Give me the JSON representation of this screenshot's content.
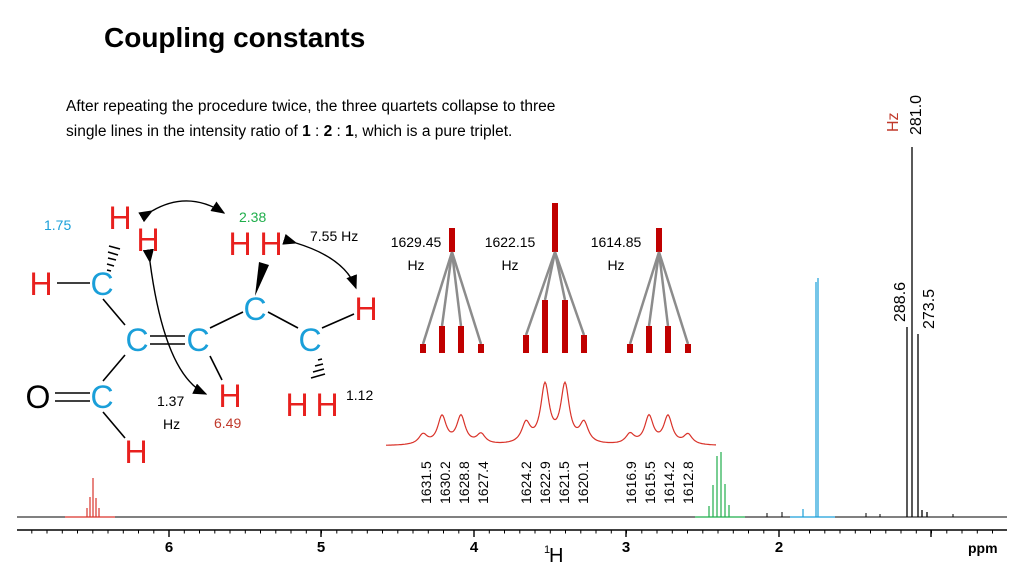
{
  "title": "Coupling constants",
  "description": {
    "line1": "After repeating the procedure twice, the three quartets collapse to three",
    "line2_start": "single lines in the intensity ratio of ",
    "ratio": [
      "1",
      "2",
      "1"
    ],
    "ratio_sep": " : ",
    "line2_end": ", which is a pure triplet."
  },
  "molecule": {
    "atoms": {
      "H_top_left_1": "H",
      "H_top_left_2": "H",
      "H_left": "H",
      "C1": "C",
      "C2": "C",
      "C3": "C",
      "C4": "C",
      "C5": "C",
      "C6": "C",
      "O": "O",
      "H_bottom": "H",
      "H_mid": "H",
      "H_top_mid_1": "H",
      "H_top_mid_2": "H",
      "H_right": "H",
      "H_bottom_right_1": "H",
      "H_bottom_right_2": "H"
    },
    "shift_labels": {
      "ch3_left": "1.75",
      "ch2": "2.38",
      "vinyl": "6.49",
      "ch3_right": "1.12"
    },
    "coupling_labels": {
      "j1": "7.55 Hz",
      "j2_value": "1.37",
      "j2_unit": "Hz"
    }
  },
  "tree_labels": [
    {
      "value": "1629.45",
      "unit": "Hz"
    },
    {
      "value": "1622.15",
      "unit": "Hz"
    },
    {
      "value": "1614.85",
      "unit": "Hz"
    }
  ],
  "peak_labels": [
    [
      "1631.5",
      "1630.2",
      "1628.8",
      "1627.4"
    ],
    [
      "1624.2",
      "1622.9",
      "1621.5",
      "1620.1"
    ],
    [
      "1616.9",
      "1615.5",
      "1614.2",
      "1612.8"
    ]
  ],
  "hz_labels": {
    "unit": "Hz",
    "v281": "281.0",
    "v288": "288.6",
    "v273": "273.5"
  },
  "axis": {
    "ticks": [
      "6",
      "5",
      "4",
      "3",
      "2"
    ],
    "nucleus_sup": "1",
    "nucleus": "H",
    "unit": "ppm"
  },
  "colors": {
    "atom_h": "#e8201e",
    "atom_c": "#1a9fd9",
    "tree": "#c00000",
    "tree_lines": "#8c8c8c",
    "green": "#1fae4b",
    "blue": "#1a9fd9",
    "hz_orange": "#c0392b"
  }
}
